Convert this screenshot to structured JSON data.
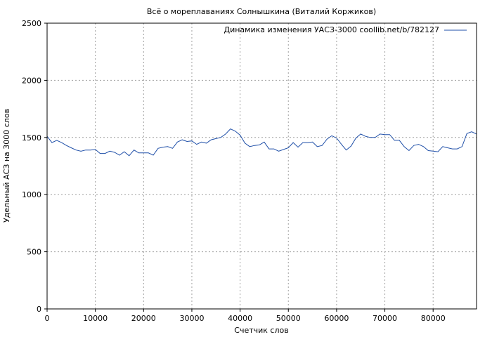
{
  "chart_data": {
    "type": "line",
    "title": "Всё о мореплаваниях Солнышкина (Виталий Коржиков)",
    "xlabel": "Счетчик слов",
    "ylabel": "Удельный АСЗ на 3000 слов",
    "xlim": [
      0,
      89000
    ],
    "ylim": [
      0,
      2500
    ],
    "x_ticks": [
      0,
      10000,
      20000,
      30000,
      40000,
      50000,
      60000,
      70000,
      80000
    ],
    "x_tick_labels": [
      "0",
      "10000",
      "20000",
      "30000",
      "40000",
      "50000",
      "60000",
      "70000",
      "80000"
    ],
    "y_ticks": [
      0,
      500,
      1000,
      1500,
      2000,
      2500
    ],
    "y_tick_labels": [
      "0",
      "500",
      "1000",
      "1500",
      "2000",
      "2500"
    ],
    "grid": true,
    "legend_position": "top-right",
    "series": [
      {
        "name": "Динамика изменения УАСЗ-3000 coollib.net/b/782127",
        "color": "#1f4fa8",
        "x": [
          0,
          1000,
          2000,
          3000,
          4000,
          5000,
          6000,
          7000,
          8000,
          9000,
          10000,
          11000,
          12000,
          13000,
          14000,
          15000,
          16000,
          17000,
          18000,
          19000,
          20000,
          21000,
          22000,
          23000,
          24000,
          25000,
          26000,
          27000,
          28000,
          29000,
          30000,
          31000,
          32000,
          33000,
          34000,
          35000,
          36000,
          37000,
          38000,
          39000,
          40000,
          41000,
          42000,
          43000,
          44000,
          45000,
          46000,
          47000,
          48000,
          49000,
          50000,
          51000,
          52000,
          53000,
          54000,
          55000,
          56000,
          57000,
          58000,
          59000,
          60000,
          61000,
          62000,
          63000,
          64000,
          65000,
          66000,
          67000,
          68000,
          69000,
          70000,
          71000,
          72000,
          73000,
          74000,
          75000,
          76000,
          77000,
          78000,
          79000,
          80000,
          81000,
          82000,
          83000,
          84000,
          85000,
          86000,
          87000,
          88000,
          89000
        ],
        "values": [
          1510,
          1455,
          1475,
          1455,
          1430,
          1410,
          1390,
          1380,
          1390,
          1390,
          1395,
          1360,
          1360,
          1380,
          1370,
          1345,
          1375,
          1340,
          1390,
          1365,
          1365,
          1365,
          1345,
          1405,
          1415,
          1420,
          1405,
          1460,
          1480,
          1465,
          1470,
          1440,
          1460,
          1450,
          1480,
          1490,
          1500,
          1530,
          1575,
          1555,
          1520,
          1450,
          1420,
          1430,
          1435,
          1460,
          1400,
          1400,
          1380,
          1395,
          1410,
          1455,
          1415,
          1455,
          1455,
          1460,
          1420,
          1430,
          1485,
          1515,
          1495,
          1440,
          1390,
          1425,
          1495,
          1530,
          1510,
          1500,
          1500,
          1530,
          1525,
          1525,
          1475,
          1475,
          1420,
          1385,
          1430,
          1440,
          1420,
          1385,
          1380,
          1375,
          1420,
          1410,
          1400,
          1400,
          1420,
          1535,
          1550,
          1530
        ]
      }
    ]
  }
}
